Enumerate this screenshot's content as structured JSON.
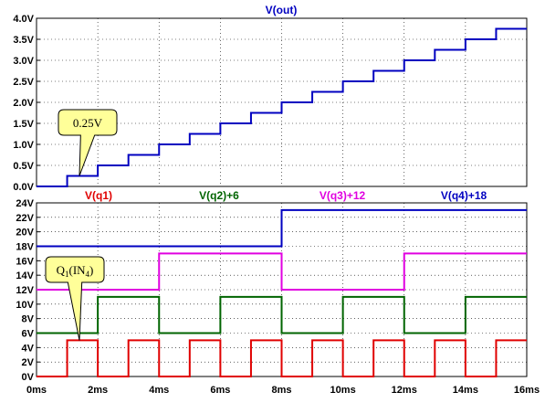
{
  "chart_data": [
    {
      "type": "line",
      "title": "V(out)",
      "title_color": "#0000c0",
      "x_unit": "ms",
      "xlim": [
        0,
        16
      ],
      "ylim": [
        0,
        4.0
      ],
      "yticks": [
        0,
        0.5,
        1.0,
        1.5,
        2.0,
        2.5,
        3.0,
        3.5,
        4.0
      ],
      "ytick_labels": [
        "0.0V",
        "0.5V",
        "1.0V",
        "1.5V",
        "2.0V",
        "2.5V",
        "3.0V",
        "3.5V",
        "4.0V"
      ],
      "grid": true,
      "series": [
        {
          "name": "V(out)",
          "color": "#0000c0",
          "step": true,
          "x": [
            0,
            1,
            2,
            3,
            4,
            5,
            6,
            7,
            8,
            9,
            10,
            11,
            12,
            13,
            14,
            15,
            16
          ],
          "y": [
            0,
            0.25,
            0.5,
            0.75,
            1.0,
            1.25,
            1.5,
            1.75,
            2.0,
            2.25,
            2.5,
            2.75,
            3.0,
            3.25,
            3.5,
            3.75,
            3.75
          ]
        }
      ],
      "annotation": {
        "text": "0.25V",
        "at_x": 1.4,
        "at_y": 0.25
      }
    },
    {
      "type": "line",
      "x_unit": "ms",
      "xlim": [
        0,
        16
      ],
      "ylim": [
        0,
        24
      ],
      "yticks": [
        0,
        2,
        4,
        6,
        8,
        10,
        12,
        14,
        16,
        18,
        20,
        22,
        24
      ],
      "ytick_labels": [
        "0V",
        "2V",
        "4V",
        "6V",
        "8V",
        "10V",
        "12V",
        "14V",
        "16V",
        "18V",
        "20V",
        "22V",
        "24V"
      ],
      "xticks": [
        0,
        2,
        4,
        6,
        8,
        10,
        12,
        14,
        16
      ],
      "xtick_labels": [
        "0ms",
        "2ms",
        "4ms",
        "6ms",
        "8ms",
        "10ms",
        "12ms",
        "14ms",
        "16ms"
      ],
      "grid": true,
      "series": [
        {
          "name": "V(q1)",
          "color": "#e00000",
          "step": true,
          "x": [
            0,
            1,
            2,
            3,
            4,
            5,
            6,
            7,
            8,
            9,
            10,
            11,
            12,
            13,
            14,
            15,
            16
          ],
          "y": [
            0,
            5,
            0,
            5,
            0,
            5,
            0,
            5,
            0,
            5,
            0,
            5,
            0,
            5,
            0,
            5,
            5
          ]
        },
        {
          "name": "V(q2)+6",
          "color": "#006400",
          "step": true,
          "x": [
            0,
            2,
            4,
            6,
            8,
            10,
            12,
            14,
            16
          ],
          "y": [
            6,
            11,
            6,
            11,
            6,
            11,
            6,
            11,
            11
          ]
        },
        {
          "name": "V(q3)+12",
          "color": "#e000e0",
          "step": true,
          "x": [
            0,
            4,
            8,
            12,
            16
          ],
          "y": [
            12,
            17,
            12,
            17,
            17
          ]
        },
        {
          "name": "V(q4)+18",
          "color": "#0000c0",
          "step": true,
          "x": [
            0,
            8,
            16
          ],
          "y": [
            18,
            23,
            23
          ]
        }
      ],
      "annotation": {
        "text": "Q",
        "sub1": "1",
        "mid": "(IN",
        "sub2": "4",
        "end": ")",
        "at_x": 1.4,
        "at_y": 5
      }
    }
  ]
}
